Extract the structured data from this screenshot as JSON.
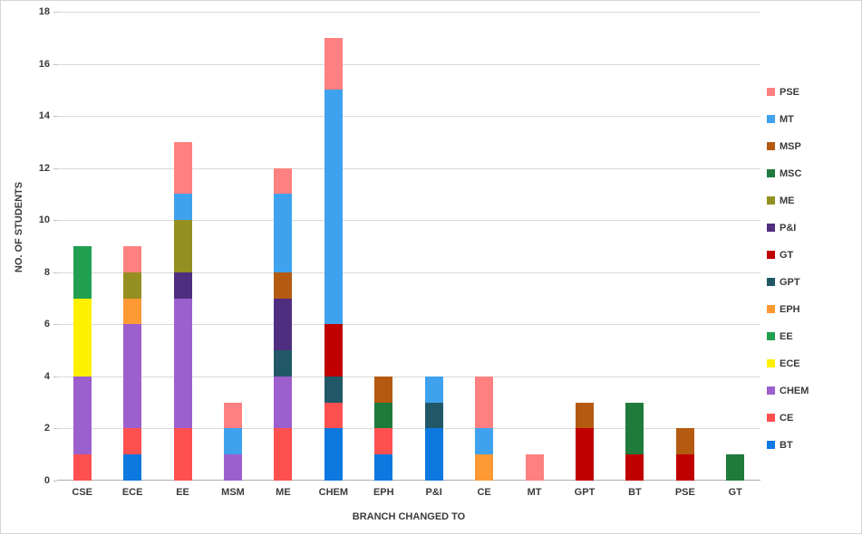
{
  "chart_data": {
    "type": "bar",
    "stacked": true,
    "title": "",
    "xlabel": "BRANCH CHANGED TO",
    "ylabel": "NO. OF STUDENTS",
    "ylim": [
      0,
      18
    ],
    "yticks": [
      0,
      2,
      4,
      6,
      8,
      10,
      12,
      14,
      16,
      18
    ],
    "grid": true,
    "legend_position": "right",
    "categories": [
      "CSE",
      "ECE",
      "EE",
      "MSM",
      "ME",
      "CHEM",
      "EPH",
      "P&I",
      "CE",
      "MT",
      "GPT",
      "BT",
      "PSE",
      "GT"
    ],
    "series": [
      {
        "name": "BT",
        "color": "#0d78e0",
        "values": [
          0,
          1,
          0,
          0,
          0,
          2,
          1,
          2,
          0,
          0,
          0,
          0,
          0,
          0
        ]
      },
      {
        "name": "CE",
        "color": "#ff5050",
        "values": [
          1,
          1,
          2,
          0,
          2,
          1,
          1,
          0,
          0,
          0,
          0,
          0,
          0,
          0
        ]
      },
      {
        "name": "CHEM",
        "color": "#9c5fce",
        "values": [
          3,
          4,
          5,
          1,
          2,
          0,
          0,
          0,
          0,
          0,
          0,
          0,
          0,
          0
        ]
      },
      {
        "name": "ECE",
        "color": "#fff000",
        "values": [
          3,
          0,
          0,
          0,
          0,
          0,
          0,
          0,
          0,
          0,
          0,
          0,
          0,
          0
        ]
      },
      {
        "name": "EE",
        "color": "#20a050",
        "values": [
          2,
          0,
          0,
          0,
          0,
          0,
          0,
          0,
          0,
          0,
          0,
          0,
          0,
          0
        ]
      },
      {
        "name": "EPH",
        "color": "#ff9933",
        "values": [
          0,
          1,
          0,
          0,
          0,
          0,
          0,
          0,
          1,
          0,
          0,
          0,
          0,
          0
        ]
      },
      {
        "name": "GPT",
        "color": "#215868",
        "values": [
          0,
          0,
          0,
          0,
          1,
          1,
          0,
          1,
          0,
          0,
          0,
          0,
          0,
          0
        ]
      },
      {
        "name": "GT",
        "color": "#c00000",
        "values": [
          0,
          0,
          0,
          0,
          0,
          2,
          0,
          0,
          0,
          0,
          2,
          1,
          1,
          0
        ]
      },
      {
        "name": "P&I",
        "color": "#4f2d7f",
        "values": [
          0,
          0,
          1,
          0,
          2,
          0,
          0,
          0,
          0,
          0,
          0,
          0,
          0,
          0
        ]
      },
      {
        "name": "ME",
        "color": "#948f20",
        "values": [
          0,
          1,
          2,
          0,
          0,
          0,
          0,
          0,
          0,
          0,
          0,
          0,
          0,
          0
        ]
      },
      {
        "name": "MSC",
        "color": "#1e7b3c",
        "values": [
          0,
          0,
          0,
          0,
          0,
          0,
          1,
          0,
          0,
          0,
          0,
          2,
          0,
          1
        ]
      },
      {
        "name": "MSP",
        "color": "#b45a11",
        "values": [
          0,
          0,
          0,
          0,
          1,
          0,
          1,
          0,
          0,
          0,
          1,
          0,
          1,
          0
        ]
      },
      {
        "name": "MT",
        "color": "#3fa2ef",
        "values": [
          0,
          0,
          1,
          1,
          3,
          9,
          0,
          1,
          1,
          0,
          0,
          0,
          0,
          0
        ]
      },
      {
        "name": "PSE",
        "color": "#ff8080",
        "values": [
          0,
          1,
          2,
          1,
          1,
          2,
          0,
          0,
          2,
          1,
          0,
          0,
          0,
          0
        ]
      }
    ],
    "legend_order": [
      "PSE",
      "MT",
      "MSP",
      "MSC",
      "ME",
      "P&I",
      "GT",
      "GPT",
      "EPH",
      "EE",
      "ECE",
      "CHEM",
      "CE",
      "BT"
    ]
  }
}
